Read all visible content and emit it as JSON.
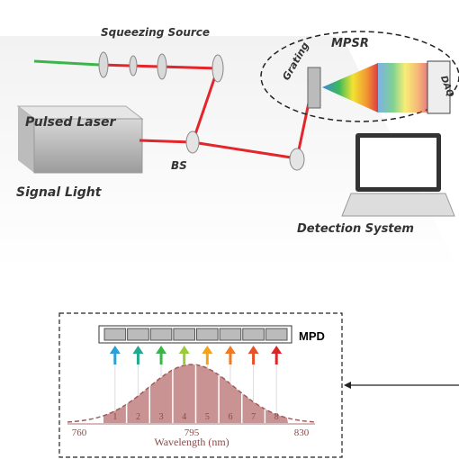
{
  "setup": {
    "squeezing_source": "Squeezing Source",
    "mpsr": "MPSR",
    "grating": "Grating",
    "daq": "DAQ",
    "pulsed_laser": "Pulsed Laser",
    "bs": "BS",
    "signal_light": "Signal Light",
    "detection_system": "Detection System"
  },
  "inset": {
    "detector": "MPD",
    "bins": [
      "1",
      "2",
      "3",
      "4",
      "5",
      "6",
      "7",
      "8"
    ],
    "axis_labels": [
      "760",
      "795",
      "830"
    ],
    "axis_title": "Wavelength (nm)"
  }
}
